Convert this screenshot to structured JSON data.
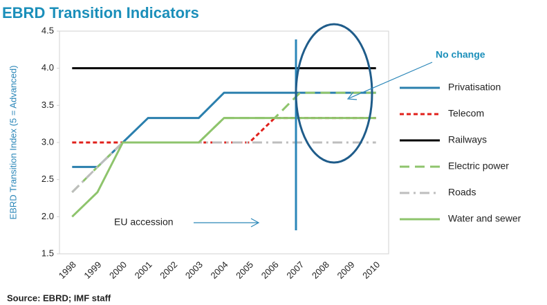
{
  "chart_data": {
    "type": "line",
    "title": "EBRD Transition Indicators",
    "y_label": "EBRD Transition Index (5 = Advanced)",
    "source": "Source: EBRD; IMF staff",
    "annotations": [
      "EU accession",
      "No change"
    ],
    "categories": [
      "1998",
      "1999",
      "2000",
      "2001",
      "2002",
      "2003",
      "2004",
      "2005",
      "2006",
      "2007",
      "2008",
      "2009",
      "2010"
    ],
    "ylim": [
      1.5,
      4.5
    ],
    "yticks": [
      1.5,
      {
        "value": 2,
        "label": "2.0"
      },
      2.5,
      {
        "value": 3,
        "label": "3.0"
      },
      3.5,
      {
        "value": 4,
        "label": "4.0"
      },
      4.5
    ],
    "legend": "right",
    "series": [
      {
        "name": "Privatisation",
        "color": "#2a7fad",
        "dash": "solid",
        "values": [
          2.67,
          2.67,
          3.0,
          3.33,
          3.33,
          3.33,
          3.67,
          3.67,
          3.67,
          3.67,
          3.67,
          3.67,
          3.67
        ]
      },
      {
        "name": "Telecom",
        "color": "#e0201b",
        "dash": "dashed",
        "values": [
          3.0,
          3.0,
          3.0,
          3.0,
          3.0,
          3.0,
          3.0,
          3.0,
          3.33,
          3.33,
          3.33,
          3.33,
          3.33
        ]
      },
      {
        "name": "Railways",
        "color": "#000000",
        "dash": "solid",
        "values": [
          4.0,
          4.0,
          4.0,
          4.0,
          4.0,
          4.0,
          4.0,
          4.0,
          4.0,
          4.0,
          4.0,
          4.0,
          4.0
        ]
      },
      {
        "name": "Electric power",
        "color": "#8ec46c",
        "dash": "longdash",
        "values": [
          2.33,
          2.67,
          3.0,
          3.0,
          3.0,
          3.0,
          3.33,
          3.33,
          3.33,
          3.67,
          3.67,
          3.67,
          3.67
        ]
      },
      {
        "name": "Roads",
        "color": "#bdbdbd",
        "dash": "dashdot",
        "values": [
          2.33,
          2.67,
          3.0,
          3.0,
          3.0,
          3.0,
          3.0,
          3.0,
          3.0,
          3.0,
          3.0,
          3.0,
          3.0
        ]
      },
      {
        "name": "Water and sewer",
        "color": "#8ec46c",
        "dash": "solid",
        "values": [
          2.0,
          2.33,
          3.0,
          3.0,
          3.0,
          3.0,
          3.33,
          3.33,
          3.33,
          3.33,
          3.33,
          3.33,
          3.33
        ]
      }
    ]
  }
}
